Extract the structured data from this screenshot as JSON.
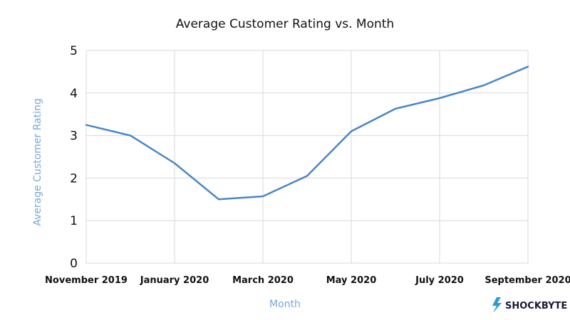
{
  "chart_data": {
    "type": "line",
    "title": "Average Customer Rating vs. Month",
    "xlabel": "Month",
    "ylabel": "Average Customer Rating",
    "x": [
      "2019-11",
      "2019-12",
      "2020-01",
      "2020-02",
      "2020-03",
      "2020-04",
      "2020-05",
      "2020-06",
      "2020-07",
      "2020-08",
      "2020-09"
    ],
    "x_tick_labels": [
      "November 2019",
      "January 2020",
      "March 2020",
      "May 2020",
      "July 2020",
      "September 2020"
    ],
    "y_ticks": [
      0,
      1,
      2,
      3,
      4,
      5
    ],
    "ylim": [
      0,
      5
    ],
    "grid": true,
    "legend": "none",
    "series": [
      {
        "values": [
          3.25,
          3.0,
          2.35,
          1.5,
          1.57,
          2.05,
          3.1,
          3.63,
          3.88,
          4.18,
          4.62
        ],
        "color": "#4a86c8"
      }
    ]
  },
  "colors": {
    "line": "#4a86c8",
    "axis_label": "#7ba6d8",
    "grid": "#d9d9d9",
    "logo_bolt": "#2a9bd6"
  },
  "branding": {
    "name": "SHOCKBYTE",
    "icon": "lightning-bolt-icon"
  }
}
